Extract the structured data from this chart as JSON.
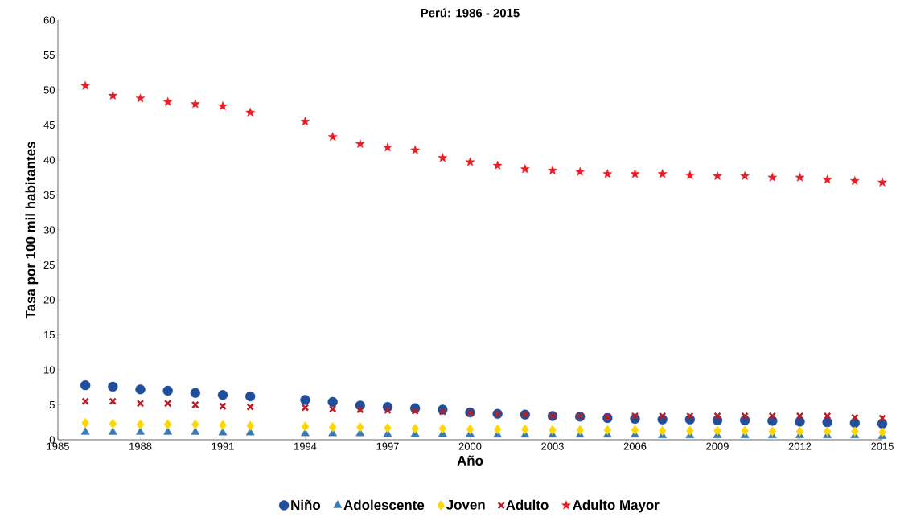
{
  "chart_data": {
    "type": "scatter",
    "title": "Perú: 1986 - 2015",
    "xlabel": "Año",
    "ylabel": "Tasa por 100 mil habitantes",
    "x": [
      1986,
      1987,
      1988,
      1989,
      1990,
      1991,
      1992,
      1994,
      1995,
      1996,
      1997,
      1998,
      1999,
      2000,
      2001,
      2002,
      2003,
      2004,
      2005,
      2006,
      2007,
      2008,
      2009,
      2010,
      2011,
      2012,
      2013,
      2014,
      2015
    ],
    "series": [
      {
        "name": "Niño",
        "color": "#1f4e9c",
        "marker": "circle",
        "values": [
          7.8,
          7.6,
          7.2,
          7.0,
          6.7,
          6.4,
          6.2,
          5.7,
          5.4,
          4.9,
          4.7,
          4.5,
          4.3,
          3.9,
          3.7,
          3.6,
          3.4,
          3.3,
          3.1,
          3.0,
          2.9,
          2.9,
          2.8,
          2.8,
          2.7,
          2.6,
          2.5,
          2.4,
          2.3
        ]
      },
      {
        "name": "Adolescente",
        "color": "#3a7ab5",
        "marker": "triangle",
        "values": [
          1.1,
          1.1,
          1.1,
          1.1,
          1.1,
          1.0,
          1.0,
          0.9,
          0.9,
          0.9,
          0.8,
          0.8,
          0.8,
          0.8,
          0.7,
          0.7,
          0.7,
          0.7,
          0.7,
          0.7,
          0.6,
          0.6,
          0.6,
          0.6,
          0.6,
          0.6,
          0.6,
          0.6,
          0.5
        ]
      },
      {
        "name": "Joven",
        "color": "#ffd700",
        "marker": "diamond",
        "values": [
          2.4,
          2.3,
          2.2,
          2.2,
          2.2,
          2.1,
          2.0,
          1.9,
          1.8,
          1.8,
          1.7,
          1.6,
          1.6,
          1.5,
          1.5,
          1.5,
          1.4,
          1.4,
          1.4,
          1.4,
          1.3,
          1.3,
          1.3,
          1.3,
          1.2,
          1.2,
          1.2,
          1.2,
          1.1
        ]
      },
      {
        "name": "Adulto",
        "color": "#b22028",
        "marker": "cross",
        "values": [
          5.5,
          5.5,
          5.2,
          5.2,
          5.0,
          4.8,
          4.7,
          4.6,
          4.4,
          4.3,
          4.2,
          4.1,
          4.0,
          3.8,
          3.7,
          3.6,
          3.4,
          3.4,
          3.3,
          3.4,
          3.4,
          3.4,
          3.4,
          3.4,
          3.4,
          3.4,
          3.4,
          3.2,
          3.1
        ]
      },
      {
        "name": "Adulto Mayor",
        "color": "#ed1c24",
        "marker": "star",
        "values": [
          50.6,
          49.2,
          48.8,
          48.3,
          48.0,
          47.7,
          46.8,
          45.5,
          43.3,
          42.3,
          41.8,
          41.4,
          40.3,
          39.7,
          39.2,
          38.7,
          38.5,
          38.3,
          38.0,
          38.0,
          38.0,
          37.8,
          37.7,
          37.7,
          37.5,
          37.5,
          37.2,
          37.0,
          36.8
        ]
      }
    ],
    "xlim": [
      1985,
      2015
    ],
    "xticks": [
      1985,
      1988,
      1991,
      1994,
      1997,
      2000,
      2003,
      2006,
      2009,
      2012,
      2015
    ],
    "ylim": [
      0,
      60
    ],
    "yticks": [
      0,
      5,
      10,
      15,
      20,
      25,
      30,
      35,
      40,
      45,
      50,
      55,
      60
    ],
    "legend": "bottom",
    "grid": false
  }
}
